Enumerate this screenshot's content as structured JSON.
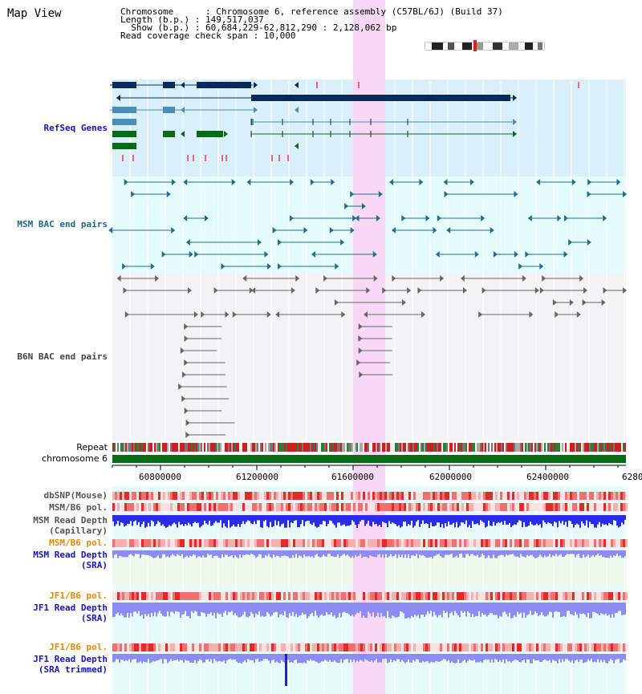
{
  "view": {
    "title": "Map View",
    "info_lines": [
      "Chromosome      : Chromosome 6, reference assembly (C57BL/6J) (Build 37)",
      "Length (b.p.) : 149,517,037",
      "  Show (b.p.) : 60,684,229-62,812,290 : 2,128,062 bp",
      "Read coverage check span : 10,000"
    ]
  },
  "tracks": {
    "refseq": "RefSeq Genes",
    "msm_bac": "MSM BAC end pairs",
    "b6n_bac": "B6N BAC end pairs",
    "repeat": "Repeat",
    "chromosome": "chromosome 6",
    "dbsnp": "dbSNP(Mouse)",
    "msm_b6_pol_1": "MSM/B6 pol.",
    "msm_read_cap_1": "MSM Read Depth",
    "msm_read_cap_2": "(Capillary)",
    "msm_b6_pol_2": "MSM/B6 pol.",
    "msm_read_sra_1": "MSM Read Depth",
    "msm_read_sra_2": "(SRA)",
    "jf1_b6_pol_1": "JF1/B6 pol.",
    "jf1_read_sra_1": "JF1 Read Depth",
    "jf1_read_sra_2": "(SRA)",
    "jf1_b6_pol_2": "JF1/B6 pol.",
    "jf1_read_trim_1": "JF1 Read Depth",
    "jf1_read_trim_2": "(SRA trimmed)"
  },
  "axis": {
    "ticks": [
      "60800000",
      "61200000",
      "61600000",
      "62000000",
      "62400000",
      "6280"
    ]
  },
  "colors": {
    "highlight": "#f8d8f4",
    "refseq_bg": "#d9effa",
    "msm_bg": "#e6fbfb",
    "b6n_bg": "#f3f3f5",
    "gene_navy": "#0b2a5c",
    "gene_steel": "#4a8fb5",
    "gene_green": "#0a6b16",
    "bac_teal": "#1f6f8f",
    "bac_gray": "#666666",
    "chromosome_green": "#0a6b16",
    "depth_blue": "#2b2be8",
    "depth_light": "#8c8cf2",
    "pol_red": "#e84040"
  }
}
